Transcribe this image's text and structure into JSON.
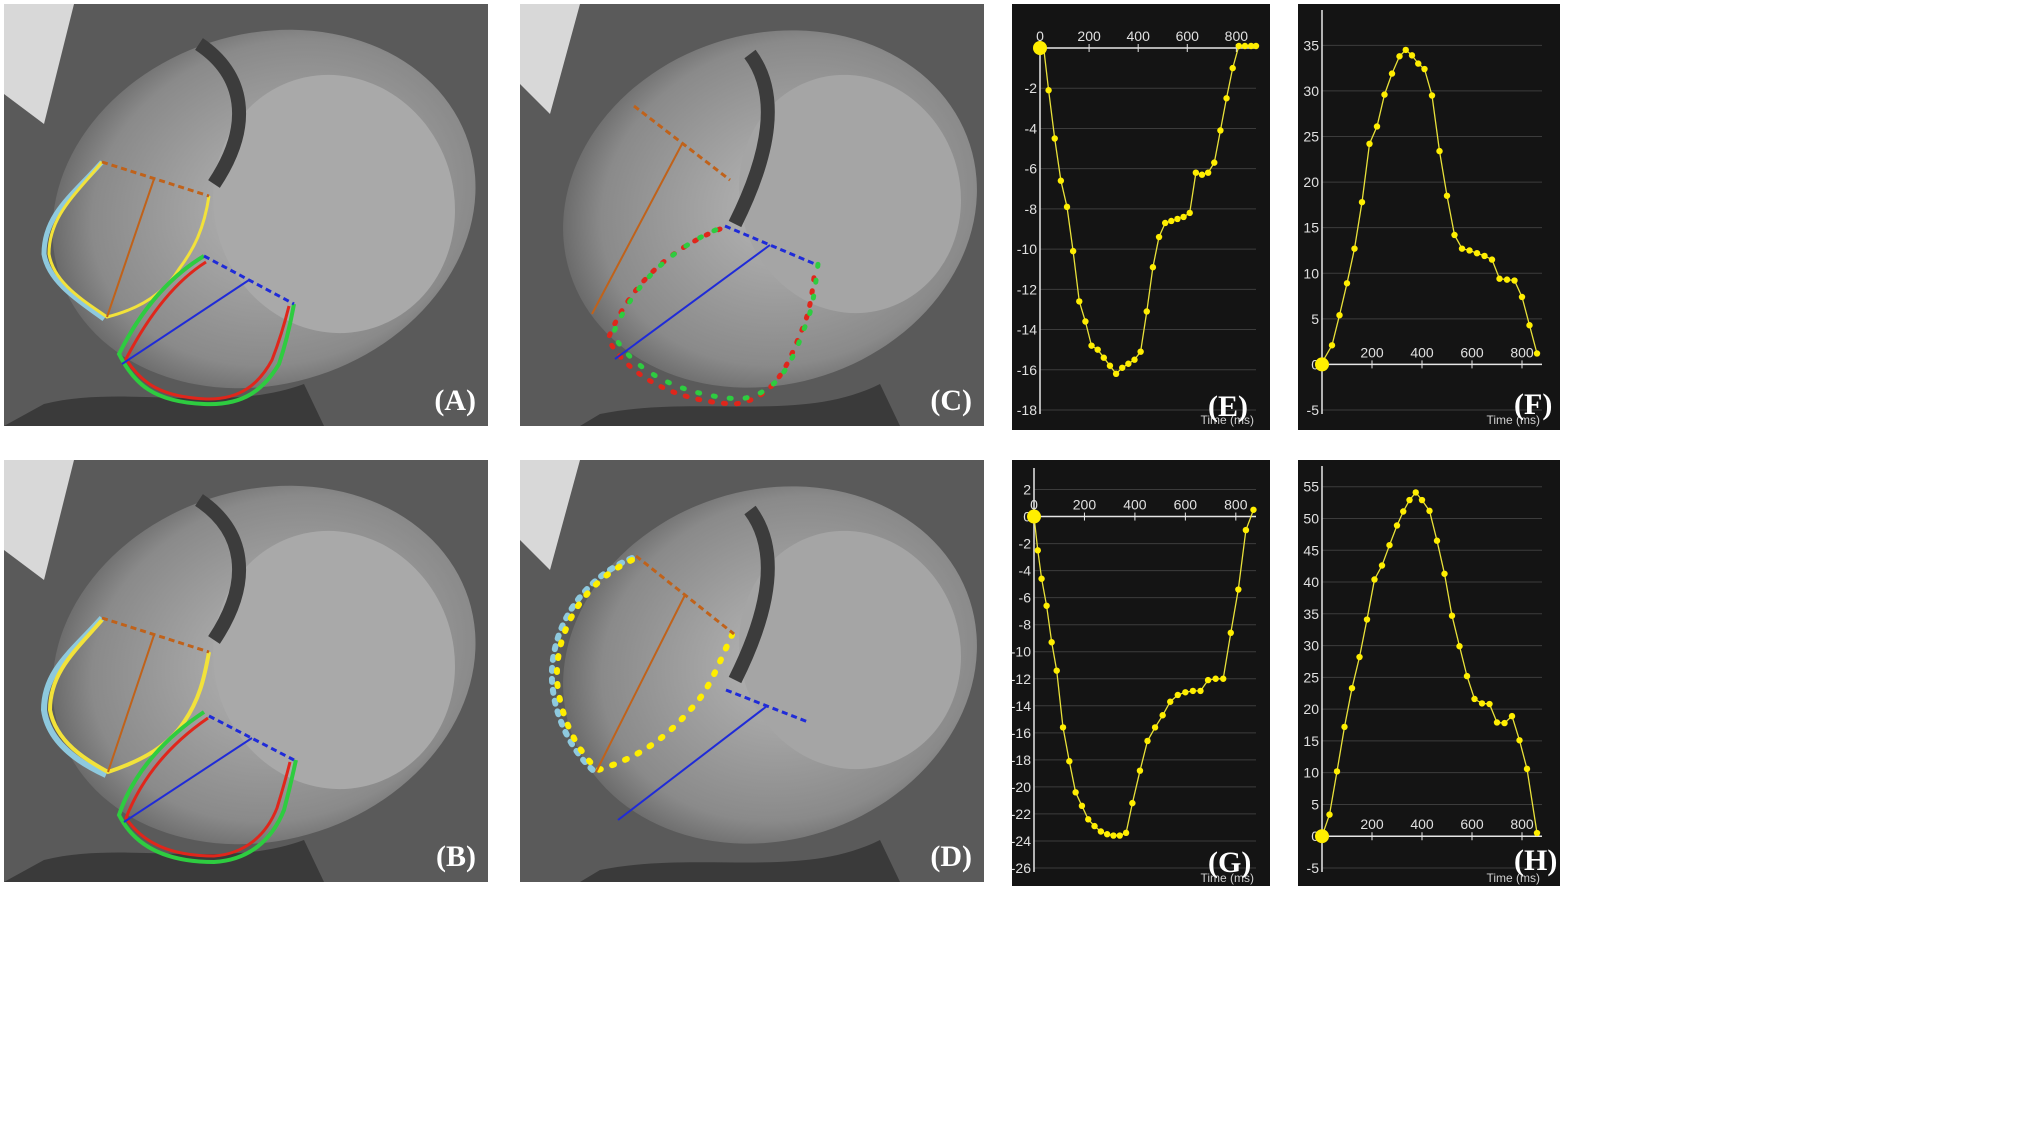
{
  "panel_labels": {
    "A": "(A)",
    "B": "(B)",
    "C": "(C)",
    "D": "(D)",
    "E": "(E)",
    "F": "(F)",
    "G": "(G)",
    "H": "(H)"
  },
  "colors": {
    "curve": "#e8e13a",
    "marker": "#ffee00",
    "plot_bg": "#141414",
    "grid": "#3c3c3c",
    "contour_yellow": "#f2e23a",
    "contour_cyan": "#8ec9de",
    "contour_red": "#e0261b",
    "contour_green": "#2ecc40",
    "axis_orange": "#c0621a",
    "axis_blue": "#1f2bd8",
    "marker_purple": "#7b2b8f"
  },
  "chart_data": [
    {
      "panel": "E",
      "type": "line",
      "xlabel": "Time (ms)",
      "ylabel": "",
      "xlim": [
        0,
        880
      ],
      "ylim": [
        -18,
        0
      ],
      "x_ticks": [
        0,
        200,
        400,
        600,
        800
      ],
      "y_ticks": [
        -2,
        -4,
        -6,
        -8,
        -10,
        -12,
        -14,
        -16,
        -18
      ],
      "x": [
        0,
        15,
        35,
        60,
        85,
        110,
        135,
        160,
        185,
        210,
        235,
        260,
        285,
        310,
        335,
        360,
        385,
        410,
        435,
        460,
        485,
        510,
        535,
        560,
        585,
        610,
        635,
        660,
        685,
        710,
        735,
        760,
        785,
        810,
        835,
        860,
        880
      ],
      "values": [
        -0.2,
        0,
        -2.1,
        -4.5,
        -6.6,
        -7.9,
        -10.1,
        -12.6,
        -13.6,
        -14.8,
        -15.0,
        -15.4,
        -15.8,
        -16.2,
        -15.9,
        -15.7,
        -15.5,
        -15.1,
        -13.1,
        -10.9,
        -9.4,
        -8.7,
        -8.6,
        -8.5,
        -8.4,
        -8.2,
        -6.2,
        -6.3,
        -6.2,
        -5.7,
        -4.1,
        -2.5,
        -1.0,
        0.1,
        0.1,
        0.1,
        0.1
      ]
    },
    {
      "panel": "F",
      "type": "line",
      "xlabel": "Time (ms)",
      "ylabel": "",
      "xlim": [
        0,
        880
      ],
      "ylim": [
        -5,
        38
      ],
      "x_ticks": [
        200,
        400,
        600,
        800
      ],
      "y_ticks": [
        35,
        30,
        25,
        20,
        15,
        10,
        5,
        0,
        -5
      ],
      "x": [
        0,
        40,
        70,
        100,
        130,
        160,
        190,
        220,
        250,
        280,
        310,
        335,
        360,
        385,
        410,
        440,
        470,
        500,
        530,
        560,
        590,
        620,
        650,
        680,
        710,
        740,
        770,
        800,
        830,
        860
      ],
      "values": [
        0.2,
        2.1,
        5.4,
        8.9,
        12.7,
        17.8,
        24.2,
        26.1,
        29.6,
        31.9,
        33.8,
        34.5,
        33.9,
        33.0,
        32.4,
        29.5,
        23.4,
        18.5,
        14.2,
        12.7,
        12.5,
        12.2,
        11.9,
        11.5,
        9.4,
        9.3,
        9.2,
        7.4,
        4.3,
        1.2
      ]
    },
    {
      "panel": "G",
      "type": "line",
      "xlabel": "Time (ms)",
      "ylabel": "",
      "xlim": [
        0,
        880
      ],
      "ylim": [
        -26,
        3
      ],
      "x_ticks": [
        0,
        200,
        400,
        600,
        800
      ],
      "y_ticks": [
        2,
        0,
        -2,
        -4,
        -6,
        -8,
        -10,
        -12,
        -14,
        -16,
        -18,
        -20,
        -22,
        -24,
        -26
      ],
      "x": [
        0,
        15,
        30,
        50,
        70,
        90,
        115,
        140,
        165,
        190,
        215,
        240,
        265,
        290,
        315,
        340,
        365,
        390,
        420,
        450,
        480,
        510,
        540,
        570,
        600,
        630,
        660,
        690,
        720,
        750,
        780,
        810,
        840,
        870
      ],
      "values": [
        0,
        -2.5,
        -4.6,
        -6.6,
        -9.3,
        -11.4,
        -15.6,
        -18.1,
        -20.4,
        -21.4,
        -22.4,
        -22.9,
        -23.3,
        -23.5,
        -23.6,
        -23.6,
        -23.4,
        -21.2,
        -18.8,
        -16.6,
        -15.6,
        -14.7,
        -13.7,
        -13.2,
        -13.0,
        -12.9,
        -12.9,
        -12.1,
        -12.0,
        -12.0,
        -8.6,
        -5.4,
        -1.0,
        0.5
      ]
    },
    {
      "panel": "H",
      "type": "line",
      "xlabel": "Time (ms)",
      "ylabel": "",
      "xlim": [
        0,
        880
      ],
      "ylim": [
        -5,
        57
      ],
      "x_ticks": [
        200,
        400,
        600,
        800
      ],
      "y_ticks": [
        55,
        50,
        45,
        40,
        35,
        30,
        25,
        20,
        15,
        10,
        5,
        0,
        -5
      ],
      "x": [
        0,
        30,
        60,
        90,
        120,
        150,
        180,
        210,
        240,
        270,
        300,
        325,
        350,
        375,
        400,
        430,
        460,
        490,
        520,
        550,
        580,
        610,
        640,
        670,
        700,
        730,
        760,
        790,
        820,
        860
      ],
      "values": [
        0,
        3.4,
        10.2,
        17.2,
        23.3,
        28.2,
        34.1,
        40.4,
        42.6,
        45.8,
        48.9,
        51.1,
        52.9,
        54.1,
        52.9,
        51.2,
        46.5,
        41.3,
        34.7,
        29.9,
        25.2,
        21.6,
        20.9,
        20.8,
        17.9,
        17.8,
        18.9,
        15.1,
        10.6,
        0.5
      ]
    }
  ]
}
